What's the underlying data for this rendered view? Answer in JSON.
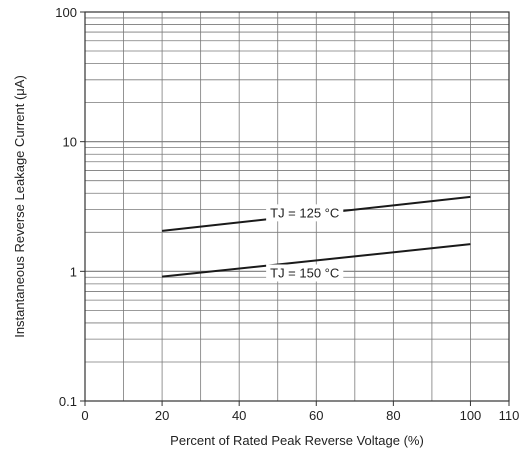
{
  "chart_data": {
    "type": "line",
    "xlabel": "Percent of Rated Peak Reverse Voltage (%)",
    "ylabel": "Instantaneous Reverse Leakage Current (μA)",
    "xlim": [
      0,
      110
    ],
    "ylim": [
      0.1,
      100
    ],
    "y_scale": "log",
    "grid": true,
    "x_ticks": [
      0,
      20,
      40,
      60,
      80,
      100,
      110
    ],
    "x_tick_labels": [
      "0",
      "20",
      "40",
      "60",
      "80",
      "100",
      "110"
    ],
    "y_ticks": [
      0.1,
      1,
      10,
      100
    ],
    "y_tick_labels": [
      "0.1",
      "1",
      "10",
      "100"
    ],
    "colors": {
      "line": "#1a1a1a",
      "grid": "#7a7a7a",
      "axis": "#333333"
    },
    "series": [
      {
        "name": "TJ = 125 °C",
        "x": [
          20,
          100
        ],
        "y": [
          2.05,
          3.75
        ],
        "label_at": [
          57,
          2.85
        ]
      },
      {
        "name": "TJ = 150 °C",
        "x": [
          20,
          100
        ],
        "y": [
          0.91,
          1.62
        ],
        "label_at": [
          57,
          0.98
        ]
      }
    ]
  }
}
